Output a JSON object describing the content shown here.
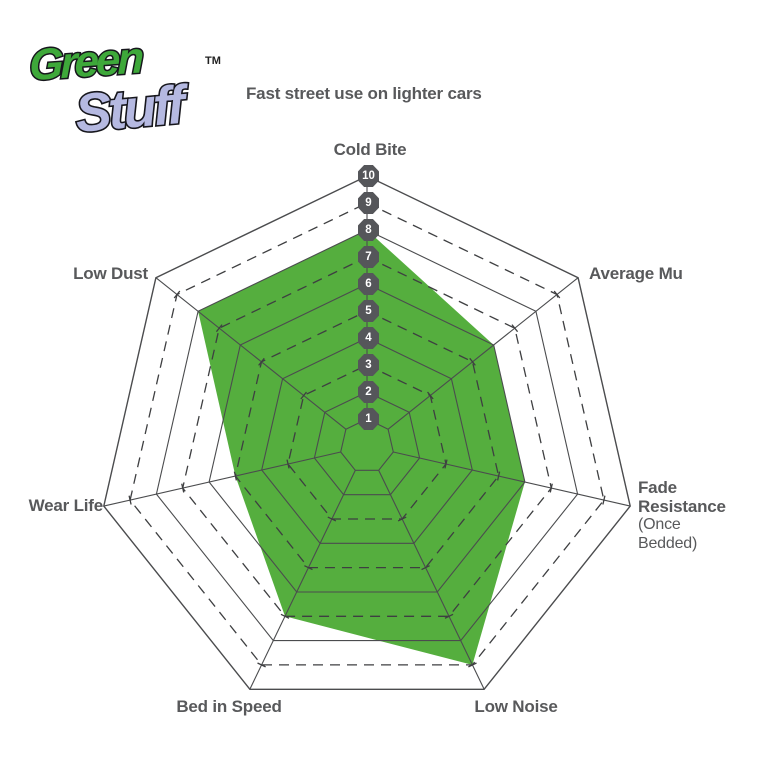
{
  "logo": {
    "word1": "Green",
    "word2": "Stuff",
    "tm": "TM"
  },
  "subtitle": "Fast street use on lighter cars",
  "chart_data": {
    "type": "radar",
    "title": "Green Stuff — Fast street use on lighter cars",
    "categories": [
      {
        "id": "cold-bite",
        "label": "Cold Bite"
      },
      {
        "id": "average-mu",
        "label": "Average Mu"
      },
      {
        "id": "fade-resistance",
        "label": "Fade Resistance",
        "sublabel": "(Once Bedded)"
      },
      {
        "id": "low-noise",
        "label": "Low Noise"
      },
      {
        "id": "bed-in-speed",
        "label": "Bed in Speed"
      },
      {
        "id": "wear-life",
        "label": "Wear Life"
      },
      {
        "id": "low-dust",
        "label": "Low Dust"
      }
    ],
    "series": [
      {
        "name": "Green Stuff",
        "values": [
          8,
          6,
          6,
          9,
          7,
          5,
          8
        ]
      }
    ],
    "scale": {
      "min": 0,
      "max": 10,
      "tick_labels": [
        "1",
        "2",
        "3",
        "4",
        "5",
        "6",
        "7",
        "8",
        "9",
        "10"
      ]
    },
    "rings": {
      "solid": [
        1,
        2,
        4,
        6,
        8,
        10
      ],
      "dashed": [
        3,
        5,
        7,
        9
      ]
    },
    "legend_position": "none",
    "grid": true,
    "colors": {
      "fill": "#55ae3e",
      "grid_solid": "#4b4c4e",
      "grid_dashed": "#3e3f41",
      "badge_bg": "#55565a",
      "badge_text": "#ffffff",
      "label_text": "#58595b",
      "logo_green": "#3ea83a",
      "logo_lavender": "#b5b9e1",
      "logo_outline": "#16161c"
    }
  }
}
